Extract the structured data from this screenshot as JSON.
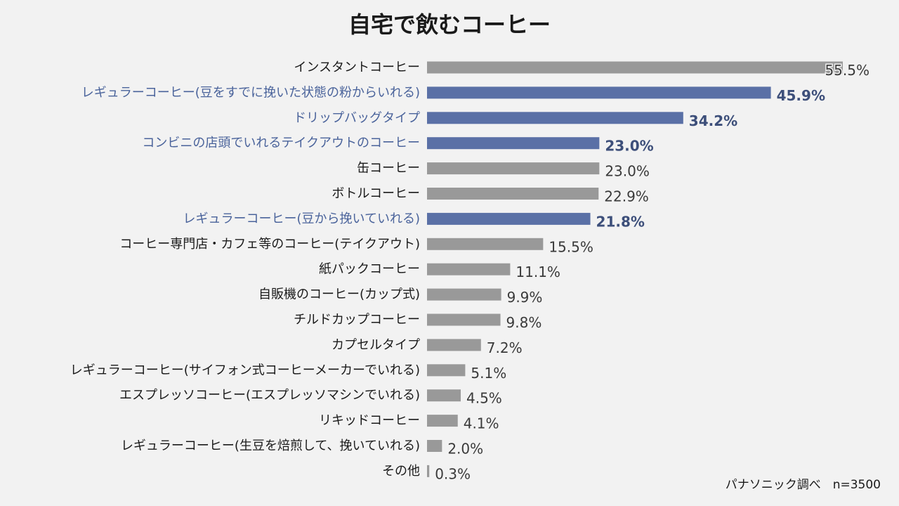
{
  "chart_data": {
    "type": "bar",
    "orientation": "horizontal",
    "title": "自宅で飲むコーヒー",
    "xlabel": "",
    "ylabel": "",
    "xlim": [
      0,
      55.5
    ],
    "grid": false,
    "unit_suffix": "%",
    "categories": [
      "インスタントコーヒー",
      "レギュラーコーヒー(豆をすでに挽いた状態の粉からいれる)",
      "ドリップバッグタイプ",
      "コンビニの店頭でいれるテイクアウトのコーヒー",
      "缶コーヒー",
      "ボトルコーヒー",
      "レギュラーコーヒー(豆から挽いていれる)",
      "コーヒー専門店・カフェ等のコーヒー(テイクアウト)",
      "紙パックコーヒー",
      "自販機のコーヒー(カップ式)",
      "チルドカップコーヒー",
      "カプセルタイプ",
      "レギュラーコーヒー(サイフォン式コーヒーメーカーでいれる)",
      "エスプレッソコーヒー(エスプレッソマシンでいれる)",
      "リキッドコーヒー",
      "レギュラーコーヒー(生豆を焙煎して、挽いていれる)",
      "その他"
    ],
    "values": [
      55.5,
      45.9,
      34.2,
      23.0,
      23.0,
      22.9,
      21.8,
      15.5,
      11.1,
      9.9,
      9.8,
      7.2,
      5.1,
      4.5,
      4.1,
      2.0,
      0.3
    ],
    "highlighted": [
      false,
      true,
      true,
      true,
      false,
      false,
      true,
      false,
      false,
      false,
      false,
      false,
      false,
      false,
      false,
      false,
      false
    ]
  },
  "colors": {
    "highlight_bar": "#5a70a6",
    "normal_bar": "#999999",
    "highlight_text": "#4a639b",
    "normal_text": "#1a1a1a",
    "normal_value_text": "#3a3a3a",
    "highlight_value_text": "#3d4f7a"
  },
  "source_note": "パナソニック調べ　n=3500"
}
